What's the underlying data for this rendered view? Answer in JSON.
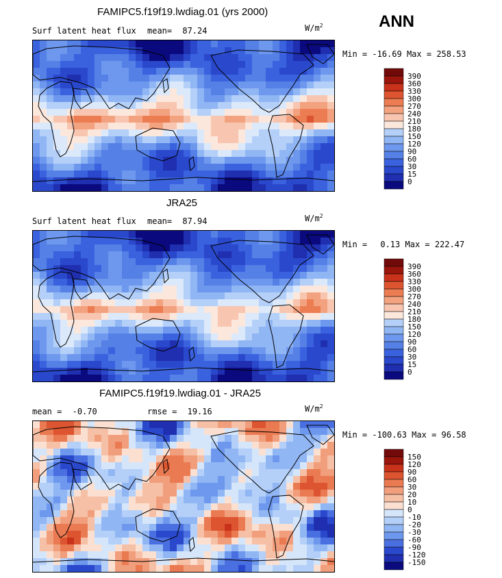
{
  "season": "ANN",
  "colors": {
    "flux": [
      "#0a0a7e",
      "#1f2fb0",
      "#2a48cc",
      "#3b62de",
      "#5580e6",
      "#6e98ee",
      "#91b6f4",
      "#b5d0f8",
      "#dbe9fb",
      "#fbe7dc",
      "#f8c6b0",
      "#f3a27f",
      "#ec7c52",
      "#dc5530",
      "#c8321a",
      "#9a150c",
      "#730a0a"
    ],
    "diff": [
      "#0a0a7e",
      "#1f2fb0",
      "#2a48cc",
      "#4a6fe0",
      "#6e98ee",
      "#91b6f4",
      "#b5d0f8",
      "#d5e6fb",
      "#fbe0d2",
      "#f6c0a6",
      "#f19e7c",
      "#ea7a52",
      "#dc5530",
      "#c8321a",
      "#9a150c",
      "#730a0a"
    ],
    "land_line": "#000000"
  },
  "panels": [
    {
      "id": "model",
      "title": "FAMIPC5.f19f19.lwdiag.01 (yrs 2000)",
      "left_label": "Surf latent heat flux",
      "mean_label": "mean=",
      "mean_value": "87.24",
      "units_base": "W/m",
      "units_exp": "2",
      "min_label": "Min =",
      "min_value": "-16.69",
      "max_label": "Max =",
      "max_value": "258.53",
      "levels": [
        "390",
        "360",
        "330",
        "300",
        "270",
        "240",
        "210",
        "180",
        "150",
        "120",
        "90",
        "60",
        "30",
        "15",
        "0"
      ],
      "field_bias": 0.35
    },
    {
      "id": "obs",
      "title": "JRA25",
      "left_label": "Surf latent heat flux",
      "mean_label": "mean=",
      "mean_value": "87.94",
      "units_base": "W/m",
      "units_exp": "2",
      "min_label": "Min =",
      "min_value": "0.13",
      "max_label": "Max =",
      "max_value": "222.47",
      "levels": [
        "390",
        "360",
        "330",
        "300",
        "270",
        "240",
        "210",
        "180",
        "150",
        "120",
        "90",
        "60",
        "30",
        "15",
        "0"
      ],
      "field_bias": 0.2
    },
    {
      "id": "diff",
      "title": "FAMIPC5.f19f19.lwdiag.01 - JRA25",
      "left_label": "mean =",
      "mean_label": "rmse =",
      "left_value": "-0.70",
      "mean_value": "19.16",
      "units_base": "W/m",
      "units_exp": "2",
      "min_label": "Min =",
      "min_value": "-100.63",
      "max_label": "Max =",
      "max_value": "96.58",
      "levels": [
        "150",
        "120",
        "90",
        "60",
        "30",
        "20",
        "10",
        "0",
        "-10",
        "-20",
        "-30",
        "-60",
        "-90",
        "-120",
        "-150"
      ]
    }
  ]
}
